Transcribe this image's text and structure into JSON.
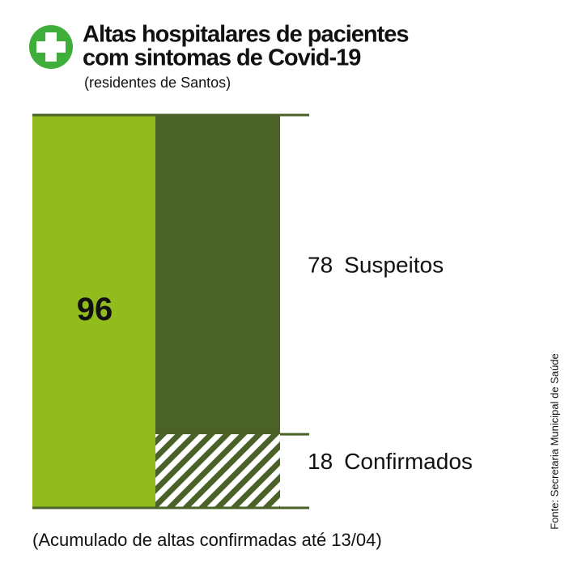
{
  "chart_data": {
    "type": "breakdown",
    "title": [
      "Altas hospitalares de pacientes",
      "com sintomas de Covid-19"
    ],
    "subtitle": "(residentes de Santos)",
    "total": 96,
    "total_color": "#92bc1e",
    "series": [
      {
        "name": "Suspeitos",
        "color": "#4a6127",
        "value": 78
      },
      {
        "name": "Confirmados",
        "color": "#4a6127",
        "value": 18,
        "pattern": "hatch"
      }
    ],
    "note": "(Acumulado de altas confirmadas até 13/04)",
    "source": "Fonte: Secretaria Municipal de Saúde"
  }
}
